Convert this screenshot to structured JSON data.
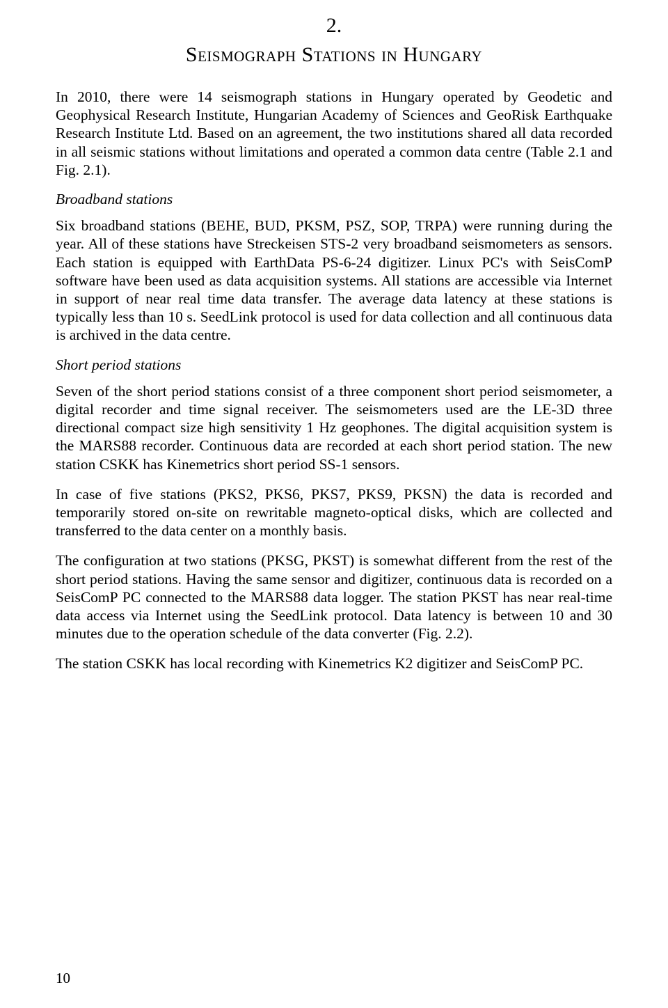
{
  "chapter": {
    "number": "2.",
    "title": "Seismograph Stations in Hungary"
  },
  "intro": "In 2010, there were 14 seismograph stations in Hungary operated by Geodetic and Geophysical Research Institute, Hungarian Academy of Sciences and GeoRisk Earthquake Research Institute Ltd. Based on an agreement, the two institutions shared all data recorded in all seismic stations without limitations and operated a common data centre (Table 2.1 and Fig. 2.1).",
  "broadband": {
    "heading": "Broadband stations",
    "p1": "Six broadband stations (BEHE, BUD, PKSM, PSZ, SOP, TRPA) were running during the year. All of these stations have Streckeisen STS-2 very broadband seismometers as sensors. Each station is equipped with EarthData PS-6-24 digitizer. Linux PC's with SeisComP software have been used as data acquisition systems. All stations are accessible via Internet in support of near real time data transfer. The average data latency at these stations is typically less than 10 s. SeedLink protocol is used for data collection and all continuous data is archived in the data centre."
  },
  "shortperiod": {
    "heading": "Short period stations",
    "p1": "Seven of the short period stations consist of a three component short period seismometer, a digital recorder and time signal receiver. The seismometers used are the LE-3D three directional compact size high sensitivity 1 Hz geophones. The digital acquisition system is the MARS88 recorder. Continuous data are recorded at each short period station. The new station CSKK has Kinemetrics short period SS-1 sensors.",
    "p2": "In case of five stations (PKS2, PKS6, PKS7, PKS9, PKSN) the data is recorded and temporarily stored on-site on rewritable magneto-optical disks, which are collected and transferred to the data center on a monthly basis.",
    "p3": "The configuration at two stations (PKSG, PKST) is somewhat different from the rest of the short period stations. Having the same sensor and digitizer, continuous data is recorded on a SeisComP PC connected to the MARS88 data logger. The station PKST has near real-time data access via Internet using the SeedLink protocol. Data latency is between 10 and 30 minutes due to the operation schedule of the data converter (Fig. 2.2).",
    "p4": "The station CSKK has local recording with Kinemetrics K2 digitizer and SeisComP PC."
  },
  "pageNumber": "10"
}
